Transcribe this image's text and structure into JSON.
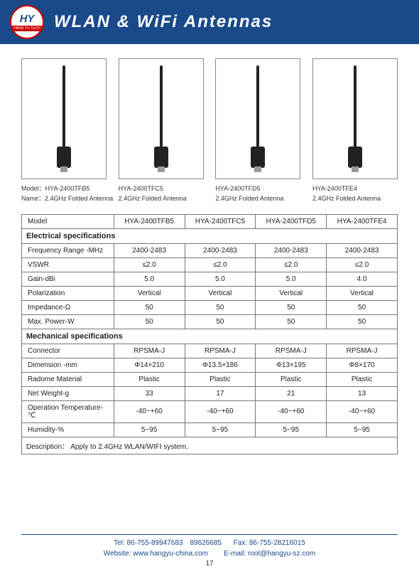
{
  "header": {
    "logo_text": "HY",
    "logo_sub": "HANG YU TECH",
    "title": "WLAN & WiFi Antennas"
  },
  "products": [
    {
      "model_label": "Model：",
      "model": "HYA-2400TFB5",
      "name_label": "Name：",
      "name": "2.4GHz Folded Antenna"
    },
    {
      "model_label": "",
      "model": "HYA-2400TFC5",
      "name_label": "",
      "name": "2.4GHz Folded Antenna"
    },
    {
      "model_label": "",
      "model": "HYA-2400TFD5",
      "name_label": "",
      "name": "2.4GHz Folded Antenna"
    },
    {
      "model_label": "",
      "model": "HYA-2400TFE4",
      "name_label": "",
      "name": "2.4GHz Folded Antenna"
    }
  ],
  "table": {
    "head": "Model",
    "models": [
      "HYA-2400TFB5",
      "HYA-2400TFC5",
      "HYA-2400TFD5",
      "HYA-2400TFE4"
    ],
    "sect1": "Electrical specifications",
    "rows1": [
      {
        "l": "Frequency Range -MHz",
        "v": [
          "2400-2483",
          "2400-2483",
          "2400-2483",
          "2400-2483"
        ]
      },
      {
        "l": "VSWR",
        "v": [
          "≤2.0",
          "≤2.0",
          "≤2.0",
          "≤2.0"
        ]
      },
      {
        "l": "Gain-dBi",
        "v": [
          "5.0",
          "5.0",
          "5.0",
          "4.0"
        ]
      },
      {
        "l": "Polarization",
        "v": [
          "Vertical",
          "Vertical",
          "Vertical",
          "Vertical"
        ]
      },
      {
        "l": "Impedance-Ω",
        "v": [
          "50",
          "50",
          "50",
          "50"
        ]
      },
      {
        "l": "Max. Power-W",
        "v": [
          "50",
          "50",
          "50",
          "50"
        ]
      }
    ],
    "sect2": "Mechanical specifications",
    "rows2": [
      {
        "l": "Connector",
        "v": [
          "RPSMA-J",
          "RPSMA-J",
          "RPSMA-J",
          "RPSMA-J"
        ]
      },
      {
        "l": "Dimension -mm",
        "v": [
          "Φ14×210",
          "Φ13.5×186",
          "Φ13×195",
          "Φ8×170"
        ]
      },
      {
        "l": "Radome Material",
        "v": [
          "Plastic",
          "Plastic",
          "Plastic",
          "Plastic"
        ]
      },
      {
        "l": "Net Weight-g",
        "v": [
          "33",
          "17",
          "21",
          "13"
        ]
      },
      {
        "l": "Operation Temperature-℃",
        "v": [
          "-40~+60",
          "-40~+60",
          "-40~+60",
          "-40~+60"
        ]
      },
      {
        "l": "Humidity-%",
        "v": [
          "5~95",
          "5~95",
          "5~95",
          "5~95"
        ]
      }
    ],
    "desc_l": "Description：",
    "desc_v": "Apply to 2.4GHz WLAN/WIFI system."
  },
  "footer": {
    "tel_l": "Tel:",
    "tel": "86-755-89947683　89626685",
    "fax_l": "Fax:",
    "fax": "86-755-28216015",
    "web_l": "Website:",
    "web": "www.hangyu-china.com",
    "mail_l": "E-mail:",
    "mail": "root@hangyu-sz.com",
    "page": "17"
  }
}
